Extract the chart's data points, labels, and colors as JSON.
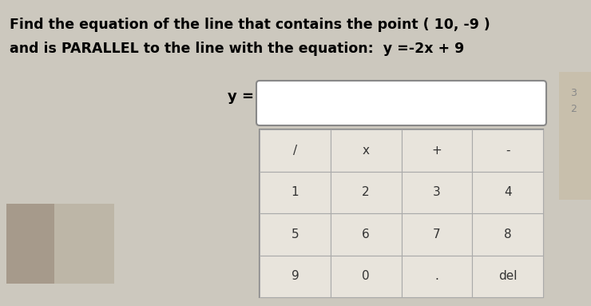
{
  "background_color": "#ccc8be",
  "title_line1": "Find the equation of the line that contains the point ( 10, -9 )",
  "title_line2": "and is PARALLEL to the line with the equation:  y =-2x + 9",
  "title_fontsize": 12.5,
  "ylabel_text": "y =",
  "keys": [
    [
      "/",
      "x",
      "+",
      "-"
    ],
    [
      "1",
      "2",
      "3",
      "4"
    ],
    [
      "5",
      "6",
      "7",
      "8"
    ],
    [
      "9",
      "0",
      ".",
      "del"
    ]
  ],
  "key_bg": "#e8e4dc",
  "key_fontsize": 11,
  "cell_border_color": "#aaaaaa",
  "input_box_color": "white",
  "input_box_border": "#888888",
  "left_photo_color": "#b8b0a0",
  "right_strip_color": "#c8bfaa"
}
